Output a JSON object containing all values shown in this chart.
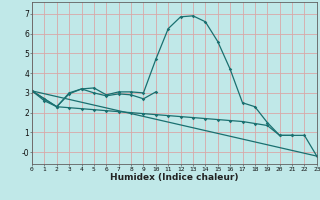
{
  "xlabel": "Humidex (Indice chaleur)",
  "background_color": "#c0e8e8",
  "grid_color": "#d8a8a8",
  "line_color": "#1a7070",
  "xlim": [
    0,
    23
  ],
  "ylim": [
    -0.6,
    7.6
  ],
  "yticks": [
    0,
    1,
    2,
    3,
    4,
    5,
    6,
    7
  ],
  "ytick_labels": [
    "-0",
    "1",
    "2",
    "3",
    "4",
    "5",
    "6",
    "7"
  ],
  "xticks": [
    0,
    1,
    2,
    3,
    4,
    5,
    6,
    7,
    8,
    9,
    10,
    11,
    12,
    13,
    14,
    15,
    16,
    17,
    18,
    19,
    20,
    21,
    22,
    23
  ],
  "series": [
    {
      "x": [
        0,
        1,
        2,
        3,
        4,
        5,
        6,
        7,
        8,
        9,
        10,
        11,
        12,
        13,
        14,
        15,
        16,
        17,
        18,
        19,
        20,
        21
      ],
      "y": [
        3.1,
        2.7,
        2.3,
        3.0,
        3.2,
        3.25,
        2.9,
        3.05,
        3.05,
        3.0,
        4.7,
        6.25,
        6.85,
        6.9,
        6.6,
        5.6,
        4.2,
        2.5,
        2.3,
        1.5,
        0.85,
        0.85
      ],
      "marker": true
    },
    {
      "x": [
        0,
        1,
        2,
        3,
        4,
        5,
        6,
        7,
        8,
        9,
        10
      ],
      "y": [
        3.1,
        2.7,
        2.3,
        2.95,
        3.2,
        3.0,
        2.85,
        2.95,
        2.9,
        2.7,
        3.05
      ],
      "marker": true
    },
    {
      "x": [
        0,
        1,
        2,
        3,
        4,
        5,
        6,
        7,
        8,
        9,
        10,
        11,
        12,
        13,
        14,
        15,
        16,
        17,
        18,
        19,
        20,
        21,
        22,
        23
      ],
      "y": [
        3.1,
        2.6,
        2.3,
        2.25,
        2.2,
        2.15,
        2.1,
        2.05,
        2.0,
        1.95,
        1.9,
        1.85,
        1.8,
        1.75,
        1.7,
        1.65,
        1.6,
        1.55,
        1.45,
        1.35,
        0.85,
        0.85,
        0.85,
        -0.2
      ],
      "marker": true
    },
    {
      "x": [
        0,
        23
      ],
      "y": [
        3.1,
        -0.2
      ],
      "marker": false
    }
  ]
}
